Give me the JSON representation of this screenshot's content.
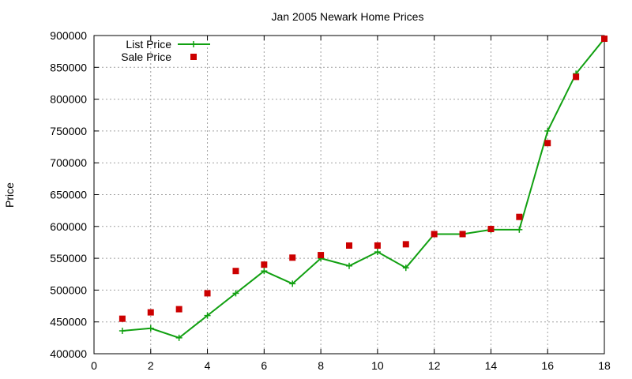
{
  "chart_data": {
    "type": "line",
    "title": "Jan 2005 Newark Home Prices",
    "xlabel": "",
    "ylabel": "Price",
    "xlim": [
      0,
      18
    ],
    "ylim": [
      400000,
      900000
    ],
    "x_ticks": [
      0,
      2,
      4,
      6,
      8,
      10,
      12,
      14,
      16,
      18
    ],
    "y_ticks": [
      400000,
      450000,
      500000,
      550000,
      600000,
      650000,
      700000,
      750000,
      800000,
      850000,
      900000
    ],
    "grid": true,
    "legend_position": "top-left",
    "series": [
      {
        "name": "List Price",
        "style": "line-with-plus-markers",
        "color": "#11a011",
        "x": [
          1,
          2,
          3,
          4,
          5,
          6,
          7,
          8,
          9,
          10,
          11,
          12,
          13,
          14,
          15,
          16,
          17,
          18
        ],
        "y": [
          436000,
          440000,
          425000,
          460000,
          495000,
          530000,
          510000,
          550000,
          538000,
          560000,
          535000,
          588000,
          588000,
          595000,
          595000,
          750000,
          840000,
          895000
        ]
      },
      {
        "name": "Sale Price",
        "style": "square-markers",
        "color": "#cc0000",
        "x": [
          1,
          2,
          3,
          4,
          5,
          6,
          7,
          8,
          9,
          10,
          11,
          12,
          13,
          14,
          15,
          16,
          17,
          18
        ],
        "y": [
          455000,
          465000,
          470000,
          495000,
          530000,
          540000,
          551000,
          555000,
          570000,
          570000,
          572000,
          588000,
          588000,
          596000,
          615000,
          731000,
          835000,
          895000
        ]
      }
    ]
  }
}
